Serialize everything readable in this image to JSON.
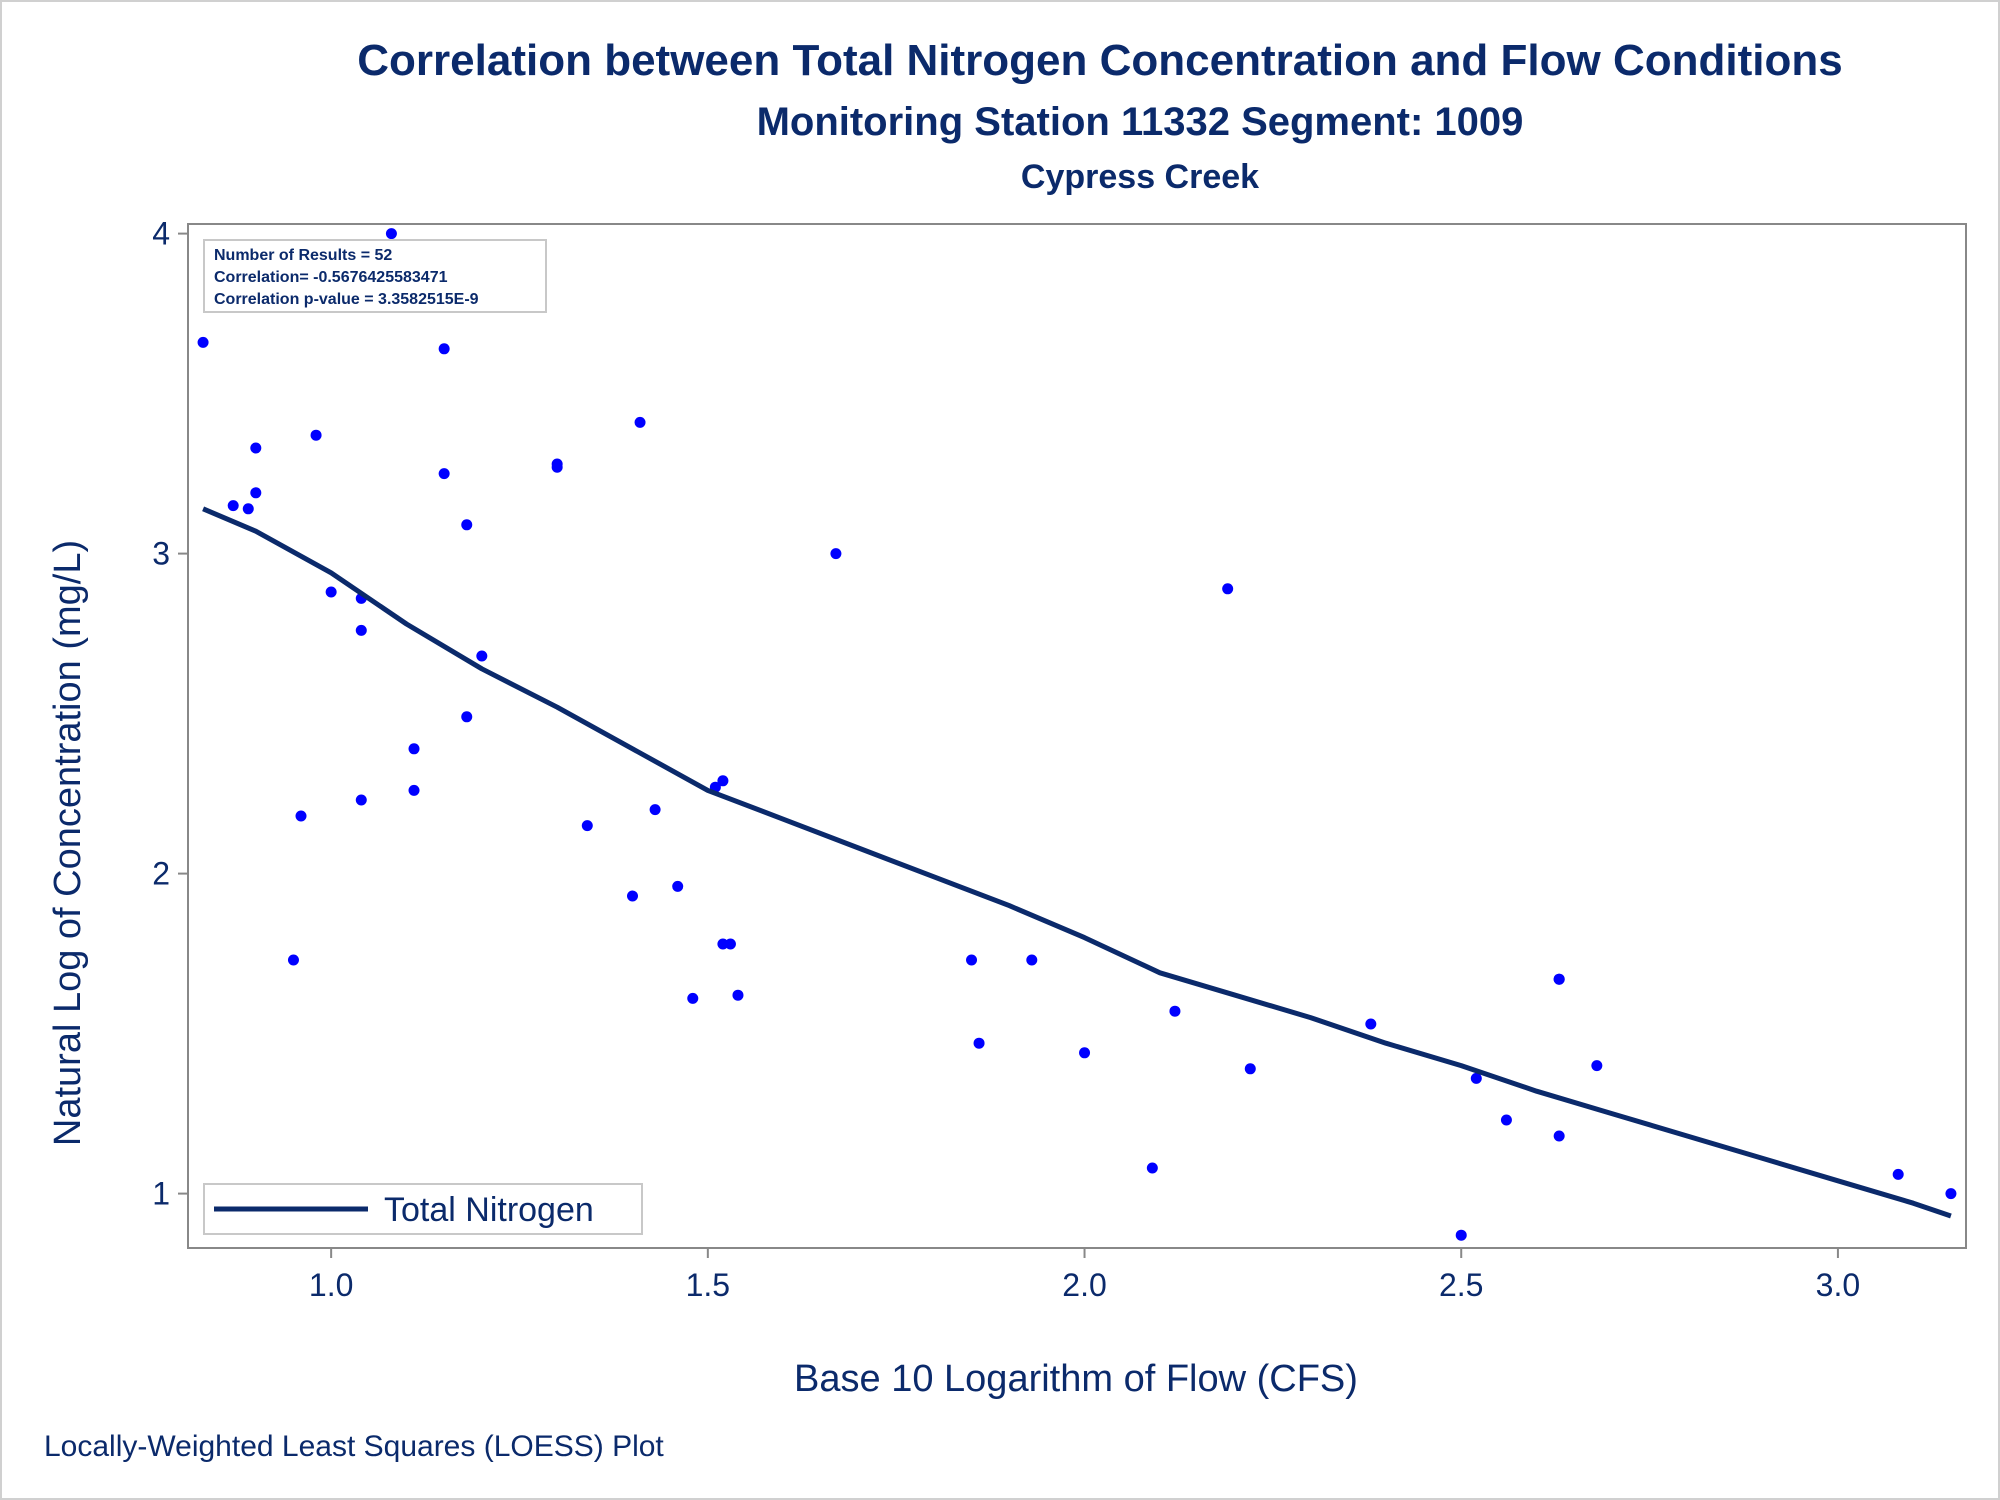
{
  "chart_data": {
    "type": "scatter",
    "title": "Correlation between Total Nitrogen Concentration and Flow Conditions",
    "subtitle": "Monitoring Station 11332 Segment: 1009",
    "subtitle2": "Cypress Creek",
    "xlabel": "Base 10 Logarithm of Flow (CFS)",
    "ylabel": "Natural Log of Concentration (mg/L)",
    "footnote": "Locally-Weighted Least Squares (LOESS) Plot",
    "xlim": [
      0.81,
      3.17
    ],
    "ylim": [
      0.83,
      4.03
    ],
    "xticks": [
      "1.0",
      "1.5",
      "2.0",
      "2.5",
      "3.0"
    ],
    "xtick_values": [
      1.0,
      1.5,
      2.0,
      2.5,
      3.0
    ],
    "yticks": [
      "1",
      "2",
      "3",
      "4"
    ],
    "ytick_values": [
      1,
      2,
      3,
      4
    ],
    "grid": false,
    "stats": [
      "Number of Results = 52",
      "Correlation= -0.5676425583471",
      "Correlation p-value = 3.3582515E-9"
    ],
    "legend": {
      "position": "bottom-left",
      "entries": [
        "Total Nitrogen"
      ]
    },
    "colors": {
      "points": "#0000ff",
      "line": "#0b2a6b",
      "text": "#0b2a6b",
      "frame": "#888888"
    },
    "points": [
      {
        "x": 0.83,
        "y": 3.66
      },
      {
        "x": 0.87,
        "y": 3.15
      },
      {
        "x": 0.89,
        "y": 3.14
      },
      {
        "x": 0.9,
        "y": 3.33
      },
      {
        "x": 0.9,
        "y": 3.19
      },
      {
        "x": 0.95,
        "y": 1.73
      },
      {
        "x": 0.96,
        "y": 2.18
      },
      {
        "x": 0.98,
        "y": 3.37
      },
      {
        "x": 1.0,
        "y": 2.88
      },
      {
        "x": 1.04,
        "y": 2.86
      },
      {
        "x": 1.04,
        "y": 2.76
      },
      {
        "x": 1.04,
        "y": 2.23
      },
      {
        "x": 1.08,
        "y": 4.0
      },
      {
        "x": 1.11,
        "y": 2.39
      },
      {
        "x": 1.11,
        "y": 2.26
      },
      {
        "x": 1.15,
        "y": 3.64
      },
      {
        "x": 1.15,
        "y": 3.25
      },
      {
        "x": 1.18,
        "y": 3.09
      },
      {
        "x": 1.18,
        "y": 2.49
      },
      {
        "x": 1.2,
        "y": 2.68
      },
      {
        "x": 1.3,
        "y": 3.28
      },
      {
        "x": 1.3,
        "y": 3.27
      },
      {
        "x": 1.34,
        "y": 2.15
      },
      {
        "x": 1.4,
        "y": 1.93
      },
      {
        "x": 1.41,
        "y": 3.41
      },
      {
        "x": 1.43,
        "y": 2.2
      },
      {
        "x": 1.46,
        "y": 1.96
      },
      {
        "x": 1.48,
        "y": 1.61
      },
      {
        "x": 1.51,
        "y": 2.27
      },
      {
        "x": 1.52,
        "y": 2.29
      },
      {
        "x": 1.52,
        "y": 1.78
      },
      {
        "x": 1.53,
        "y": 1.78
      },
      {
        "x": 1.54,
        "y": 1.62
      },
      {
        "x": 1.67,
        "y": 3.0
      },
      {
        "x": 1.85,
        "y": 1.73
      },
      {
        "x": 1.86,
        "y": 1.47
      },
      {
        "x": 2.0,
        "y": 1.44
      },
      {
        "x": 2.09,
        "y": 1.08
      },
      {
        "x": 2.12,
        "y": 1.57
      },
      {
        "x": 2.19,
        "y": 2.89
      },
      {
        "x": 2.22,
        "y": 1.39
      },
      {
        "x": 2.38,
        "y": 1.53
      },
      {
        "x": 2.5,
        "y": 0.87
      },
      {
        "x": 2.52,
        "y": 1.36
      },
      {
        "x": 2.56,
        "y": 1.23
      },
      {
        "x": 2.63,
        "y": 1.67
      },
      {
        "x": 2.63,
        "y": 1.18
      },
      {
        "x": 2.68,
        "y": 1.4
      },
      {
        "x": 3.08,
        "y": 1.06
      },
      {
        "x": 3.15,
        "y": 1.0
      },
      {
        "x": 1.93,
        "y": 1.73
      },
      {
        "x": 2.63,
        "y": 1.67
      }
    ],
    "series": [
      {
        "name": "Total Nitrogen",
        "type": "line",
        "x": [
          0.83,
          0.9,
          1.0,
          1.1,
          1.2,
          1.3,
          1.4,
          1.5,
          1.6,
          1.7,
          1.8,
          1.9,
          2.0,
          2.1,
          2.2,
          2.3,
          2.4,
          2.5,
          2.6,
          2.7,
          2.8,
          2.9,
          3.0,
          3.1,
          3.15
        ],
        "y": [
          3.14,
          3.07,
          2.94,
          2.78,
          2.64,
          2.52,
          2.39,
          2.26,
          2.17,
          2.08,
          1.99,
          1.9,
          1.8,
          1.69,
          1.62,
          1.55,
          1.47,
          1.4,
          1.32,
          1.25,
          1.18,
          1.11,
          1.04,
          0.97,
          0.93
        ]
      }
    ]
  }
}
